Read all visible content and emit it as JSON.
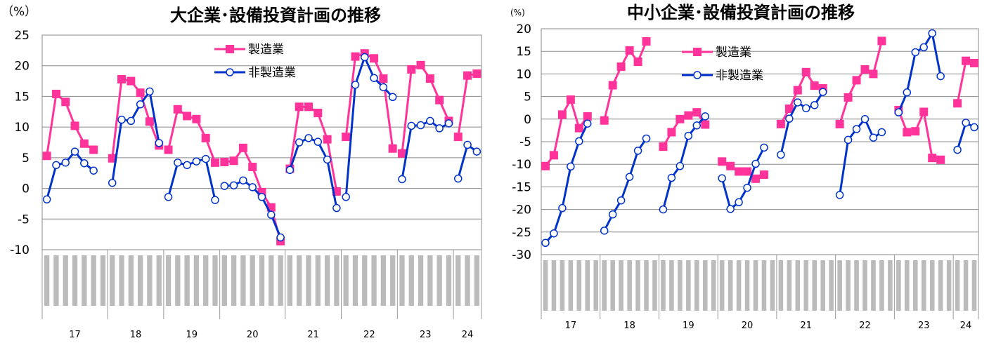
{
  "chart_data": [
    {
      "type": "line",
      "title": "大企業･設備投資計画の推移",
      "ylabel": "（%）",
      "ylim": [
        -10,
        25
      ],
      "yticks": [
        -10,
        -5,
        0,
        5,
        10,
        15,
        20,
        25
      ],
      "grid": true,
      "legend_position": "top-center",
      "groups": [
        {
          "year": "17",
          "points": 7
        },
        {
          "year": "18",
          "points": 6
        },
        {
          "year": "19",
          "points": 6
        },
        {
          "year": "20",
          "points": 7
        },
        {
          "year": "21",
          "points": 6
        },
        {
          "year": "22",
          "points": 6
        },
        {
          "year": "23",
          "points": 6
        },
        {
          "year": "24",
          "points": 3
        }
      ],
      "series": [
        {
          "name": "製造業",
          "color": "#ff3399",
          "values": [
            [
              5.3,
              15.4,
              14.1,
              10.2,
              7.3,
              6.3,
              null
            ],
            [
              4.9,
              17.8,
              17.5,
              15.6,
              10.9,
              7.0
            ],
            [
              6.3,
              12.9,
              11.8,
              11.3,
              8.2,
              4.2
            ],
            [
              4.3,
              4.5,
              6.6,
              3.5,
              -0.6,
              -3.1,
              -8.6
            ],
            [
              3.2,
              13.3,
              13.3,
              12.3,
              8.0,
              -0.5
            ],
            [
              8.4,
              21.5,
              22.0,
              21.2,
              17.9,
              6.5
            ],
            [
              5.7,
              19.4,
              20.1,
              17.9,
              14.4,
              11.0
            ],
            [
              8.4,
              18.4,
              18.7
            ]
          ]
        },
        {
          "name": "非製造業",
          "color": "#0033cc",
          "values": [
            [
              -1.8,
              3.8,
              4.2,
              6.0,
              4.1,
              2.9,
              null
            ],
            [
              0.9,
              11.2,
              11.0,
              13.7,
              15.8,
              7.4
            ],
            [
              -1.4,
              4.2,
              3.8,
              4.4,
              4.8,
              -1.9
            ],
            [
              0.4,
              0.5,
              1.3,
              0.2,
              -1.4,
              -4.3,
              -8.0
            ],
            [
              3.0,
              7.5,
              8.2,
              7.6,
              4.7,
              -3.2
            ],
            [
              -1.4,
              16.9,
              21.4,
              18.0,
              16.5,
              14.9
            ],
            [
              1.5,
              10.2,
              10.3,
              11.0,
              9.8,
              10.6
            ],
            [
              1.6,
              7.1,
              6.0
            ]
          ]
        }
      ]
    },
    {
      "type": "line",
      "title": "中小企業･設備投資計画の推移",
      "ylabel": "(%)",
      "ylim": [
        -30,
        20
      ],
      "yticks": [
        -30,
        -25,
        -20,
        -15,
        -10,
        -5,
        0,
        5,
        10,
        15,
        20
      ],
      "grid": true,
      "legend_position": "top-center",
      "groups": [
        {
          "year": "17",
          "points": 7
        },
        {
          "year": "18",
          "points": 7
        },
        {
          "year": "19",
          "points": 7
        },
        {
          "year": "20",
          "points": 7
        },
        {
          "year": "21",
          "points": 7
        },
        {
          "year": "22",
          "points": 7
        },
        {
          "year": "23",
          "points": 7
        },
        {
          "year": "24",
          "points": 3
        }
      ],
      "series": [
        {
          "name": "製造業",
          "color": "#ff3399",
          "values": [
            [
              -10.4,
              -8.0,
              1.0,
              4.3,
              -2.0,
              0.6,
              null
            ],
            [
              -0.3,
              7.5,
              11.6,
              15.2,
              12.7,
              17.2,
              null
            ],
            [
              -6.1,
              -2.9,
              0.0,
              0.8,
              1.5,
              -1.2,
              null
            ],
            [
              -9.4,
              -10.4,
              -11.6,
              -11.6,
              -13.2,
              -12.3,
              null
            ],
            [
              -1.1,
              2.3,
              6.4,
              10.4,
              7.4,
              6.8,
              null
            ],
            [
              -1.1,
              4.8,
              8.6,
              11.0,
              10.0,
              17.3,
              null
            ],
            [
              2.0,
              -2.9,
              -2.7,
              1.6,
              -8.6,
              -9.0,
              null
            ],
            [
              3.5,
              12.9,
              12.4
            ]
          ]
        },
        {
          "name": "非製造業",
          "color": "#0033cc",
          "values": [
            [
              -27.4,
              -25.3,
              -19.7,
              -10.5,
              -4.9,
              -1.0,
              null
            ],
            [
              -24.7,
              -21.1,
              -18.0,
              -12.8,
              -7.0,
              -4.3,
              null
            ],
            [
              -20.0,
              -13.0,
              -10.4,
              -3.7,
              -1.4,
              0.6,
              null
            ],
            [
              -13.1,
              -19.9,
              -18.4,
              -15.2,
              -9.9,
              -6.3,
              null
            ],
            [
              -7.9,
              0.1,
              3.7,
              2.4,
              3.1,
              6.0,
              null
            ],
            [
              -16.8,
              -4.6,
              -2.2,
              0.0,
              -4.1,
              -2.9,
              null
            ],
            [
              1.5,
              5.9,
              14.8,
              15.9,
              19.0,
              9.5,
              null
            ],
            [
              -6.8,
              -0.8,
              -1.8
            ]
          ]
        }
      ]
    }
  ]
}
